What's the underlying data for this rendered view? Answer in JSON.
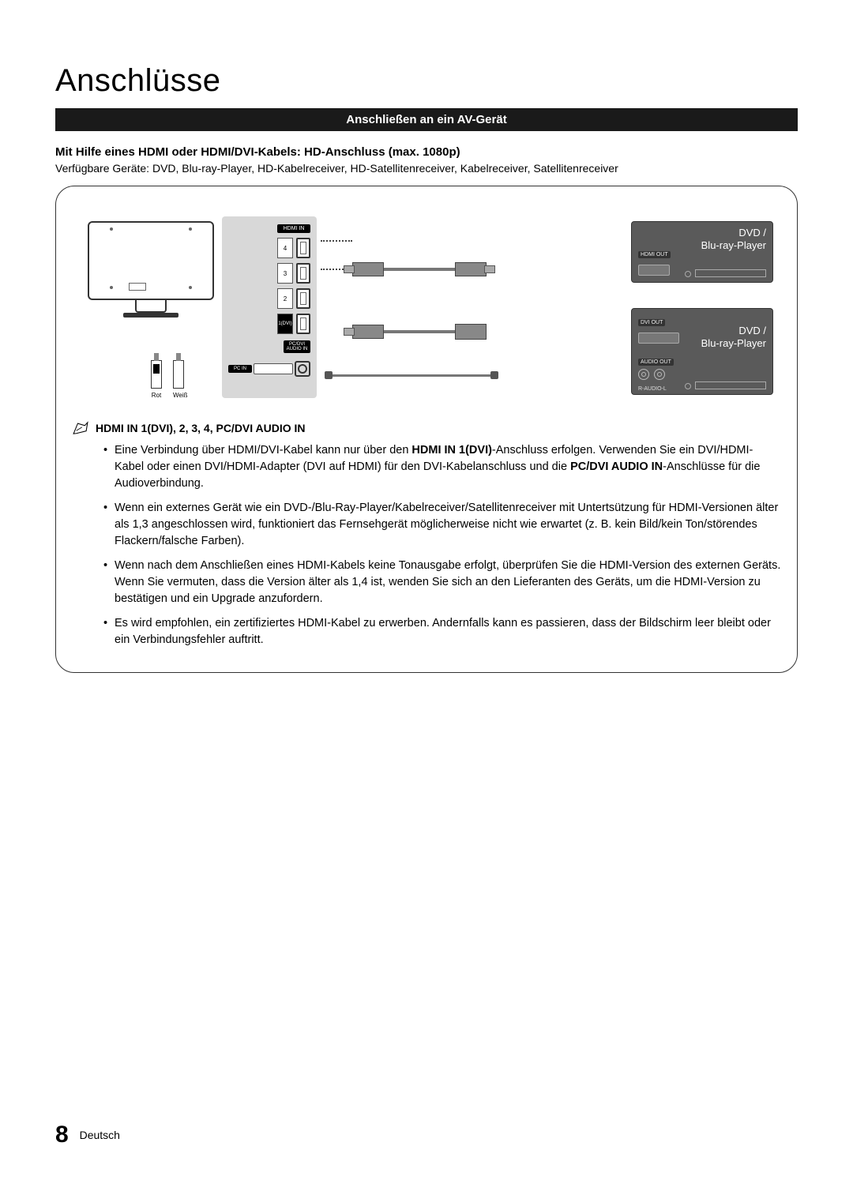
{
  "title": "Anschlüsse",
  "band": "Anschließen an ein AV-Gerät",
  "sub1": "Mit Hilfe eines HDMI oder HDMI/DVI-Kabels: HD-Anschluss (max. 1080p)",
  "sub2": "Verfügbare Geräte: DVD, Blu-ray-Player, HD-Kabelreceiver, HD-Satellitenreceiver, Kabelreceiver, Satellitenreceiver",
  "zoom": {
    "hdmi_in": "HDMI IN",
    "ports": [
      "4",
      "3",
      "2",
      "1(DVI)"
    ],
    "pc_in": "PC IN",
    "pcdvi_audio": "PC/DVI\nAUDIO IN"
  },
  "devices": {
    "top": {
      "line1": "DVD /",
      "line2": "Blu-ray-Player",
      "port": "HDMI OUT"
    },
    "bottom": {
      "line1": "DVD /",
      "line2": "Blu-ray-Player",
      "port_dvi": "DVI OUT",
      "port_aud": "AUDIO OUT",
      "aud_lbl": "R-AUDIO-L"
    }
  },
  "rw": {
    "red": "Rot",
    "white": "Weiß"
  },
  "notes_head": "HDMI IN 1(DVI), 2, 3, 4, PC/DVI AUDIO IN",
  "notes": [
    "Eine Verbindung über HDMI/DVI-Kabel kann nur über den <b>HDMI IN 1(DVI)</b>-Anschluss erfolgen. Verwenden Sie ein DVI/HDMI-Kabel oder einen DVI/HDMI-Adapter (DVI auf HDMI) für den DVI-Kabelanschluss und die <b>PC/DVI AUDIO IN</b>-Anschlüsse für die Audioverbindung.",
    "Wenn ein externes Gerät wie ein DVD-/Blu-Ray-Player/Kabelreceiver/Satellitenreceiver mit Untertsützung für HDMI-Versionen älter als 1,3 angeschlossen wird, funktioniert das Fernsehgerät möglicherweise nicht wie erwartet (z. B. kein Bild/kein Ton/störendes Flackern/falsche Farben).",
    "Wenn nach dem Anschließen eines HDMI-Kabels keine Tonausgabe erfolgt, überprüfen Sie die HDMI-Version des externen Geräts. Wenn Sie vermuten, dass die Version älter als 1,4 ist, wenden Sie sich an den Lieferanten des Geräts, um die HDMI-Version zu bestätigen und ein Upgrade anzufordern.",
    "Es wird empfohlen, ein zertifiziertes HDMI-Kabel zu erwerben. Andernfalls kann es passieren, dass der Bildschirm leer bleibt oder ein Verbindungsfehler auftritt."
  ],
  "footer": {
    "page": "8",
    "lang": "Deutsch"
  },
  "colors": {
    "band_bg": "#1a1a1a",
    "zoom_bg": "#d8d8d8",
    "device_bg": "#5a5a5a"
  }
}
